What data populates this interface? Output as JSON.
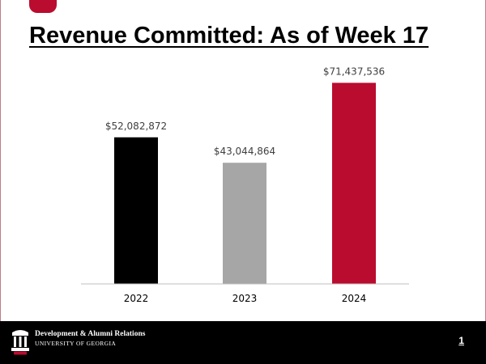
{
  "slide": {
    "title": "Revenue Committed: As of Week 17",
    "page_number": "1"
  },
  "footer": {
    "org_name": "Development & Alumni Relations",
    "org_sub": "UNIVERSITY OF GEORGIA",
    "logo_icon": "uga-arch-logo-icon"
  },
  "colors": {
    "accent": "#ba0c2f",
    "bar_2022": "#000000",
    "bar_2023": "#a6a6a6",
    "bar_2024": "#ba0c2f"
  },
  "chart_data": {
    "type": "bar",
    "title": "",
    "xlabel": "",
    "ylabel": "",
    "categories": [
      "2022",
      "2023",
      "2024"
    ],
    "values": [
      52082872,
      43044864,
      71437536
    ],
    "data_labels": [
      "$52,082,872",
      "$43,044,864",
      "$71,437,536"
    ],
    "ylim": [
      0,
      75000000
    ],
    "grid": false,
    "legend": "none"
  }
}
